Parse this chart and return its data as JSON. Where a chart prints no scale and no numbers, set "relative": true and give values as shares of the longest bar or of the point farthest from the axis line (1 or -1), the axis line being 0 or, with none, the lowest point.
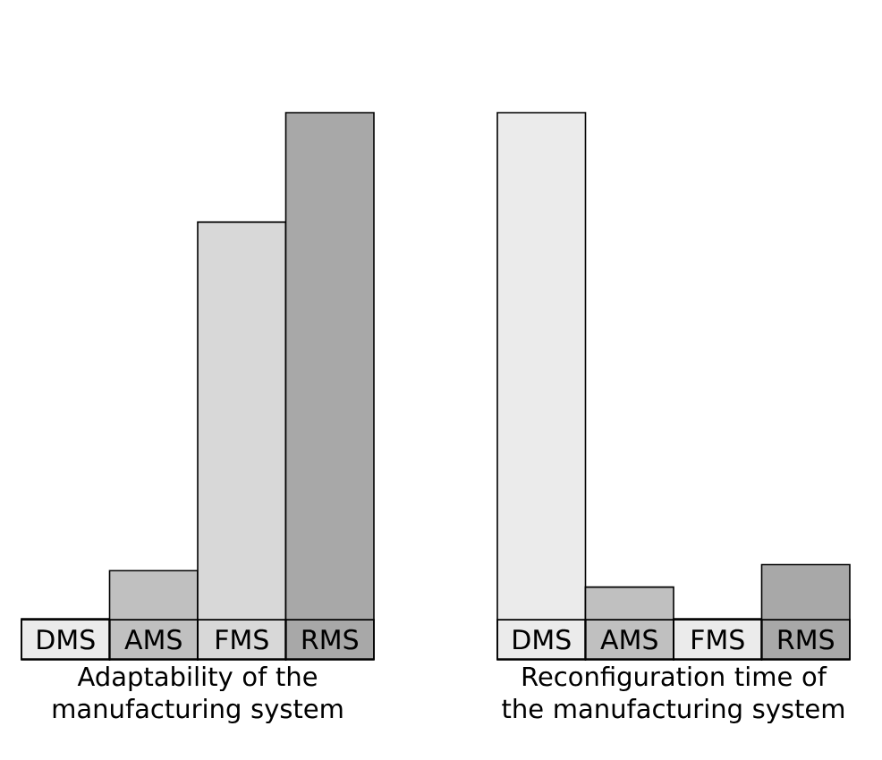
{
  "chart_data": [
    {
      "type": "bar",
      "title": "Adaptability of the manufacturing system",
      "categories": [
        "DMS",
        "AMS",
        "FMS",
        "RMS"
      ],
      "values": [
        0.075,
        0.163,
        0.8,
        1
      ],
      "colors": [
        "#ebebeb",
        "#c0c0c0",
        "#d8d8d8",
        "#a8a8a8"
      ],
      "relative": true
    },
    {
      "type": "bar",
      "title": "Reconfiguration time of the manufacturing system",
      "categories": [
        "DMS",
        "AMS",
        "FMS",
        "RMS"
      ],
      "values": [
        1,
        0.133,
        0.075,
        0.174
      ],
      "colors": [
        "#ebebeb",
        "#c0c0c0",
        "#ebebeb",
        "#a8a8a8"
      ],
      "relative": true
    }
  ]
}
